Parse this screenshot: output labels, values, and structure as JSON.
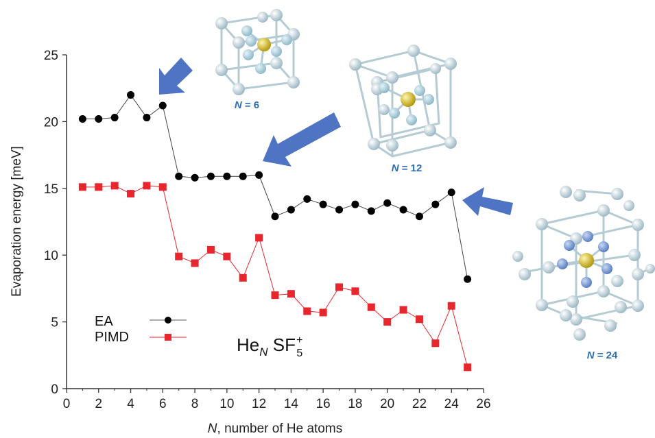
{
  "chart_data": {
    "type": "line",
    "xlabel_prefix": "N",
    "xlabel_rest": ", number of He atoms",
    "ylabel": "Evaporation energy [meV]",
    "xlim": [
      0,
      26
    ],
    "ylim": [
      0,
      25
    ],
    "xticks": [
      0,
      2,
      4,
      6,
      8,
      10,
      12,
      14,
      16,
      18,
      20,
      22,
      24,
      26
    ],
    "yticks": [
      0,
      5,
      10,
      15,
      20,
      25
    ],
    "grid": false,
    "legend_position": "bottom-left",
    "series": [
      {
        "name": "EA",
        "color": "#000000",
        "marker": "circle",
        "x": [
          1,
          2,
          3,
          4,
          5,
          6,
          7,
          8,
          9,
          10,
          11,
          12,
          13,
          14,
          15,
          16,
          17,
          18,
          19,
          20,
          21,
          22,
          23,
          24,
          25
        ],
        "y": [
          20.2,
          20.2,
          20.3,
          22.0,
          20.3,
          21.2,
          15.9,
          15.8,
          15.9,
          15.9,
          15.9,
          16.0,
          12.9,
          13.4,
          14.2,
          13.8,
          13.4,
          13.8,
          13.3,
          13.9,
          13.4,
          12.9,
          13.8,
          14.7,
          8.2
        ]
      },
      {
        "name": "PIMD",
        "color": "#e8262d",
        "marker": "square",
        "x": [
          1,
          2,
          3,
          4,
          5,
          6,
          7,
          8,
          9,
          10,
          11,
          12,
          13,
          14,
          15,
          16,
          17,
          18,
          19,
          20,
          21,
          22,
          23,
          24,
          25
        ],
        "y": [
          15.1,
          15.1,
          15.2,
          14.6,
          15.2,
          15.1,
          9.9,
          9.4,
          10.4,
          9.9,
          8.3,
          11.3,
          7.0,
          7.1,
          5.8,
          5.7,
          7.6,
          7.3,
          6.1,
          5.0,
          5.9,
          5.2,
          3.4,
          6.2,
          1.6
        ]
      }
    ],
    "formula": {
      "base": "He",
      "sub_n": "N",
      "mid": " SF",
      "sub": "5",
      "sup": "+"
    },
    "annotations": [
      {
        "prefix": "N",
        "value": " = 6"
      },
      {
        "prefix": "N",
        "value": " = 12"
      },
      {
        "prefix": "N",
        "value": " = 24"
      }
    ],
    "colors": {
      "arrow": "#4f74c4",
      "label": "#2e6fb3",
      "atom": "#c9dde6",
      "center": "#d9c22a",
      "inner": "#6f93d0"
    }
  }
}
